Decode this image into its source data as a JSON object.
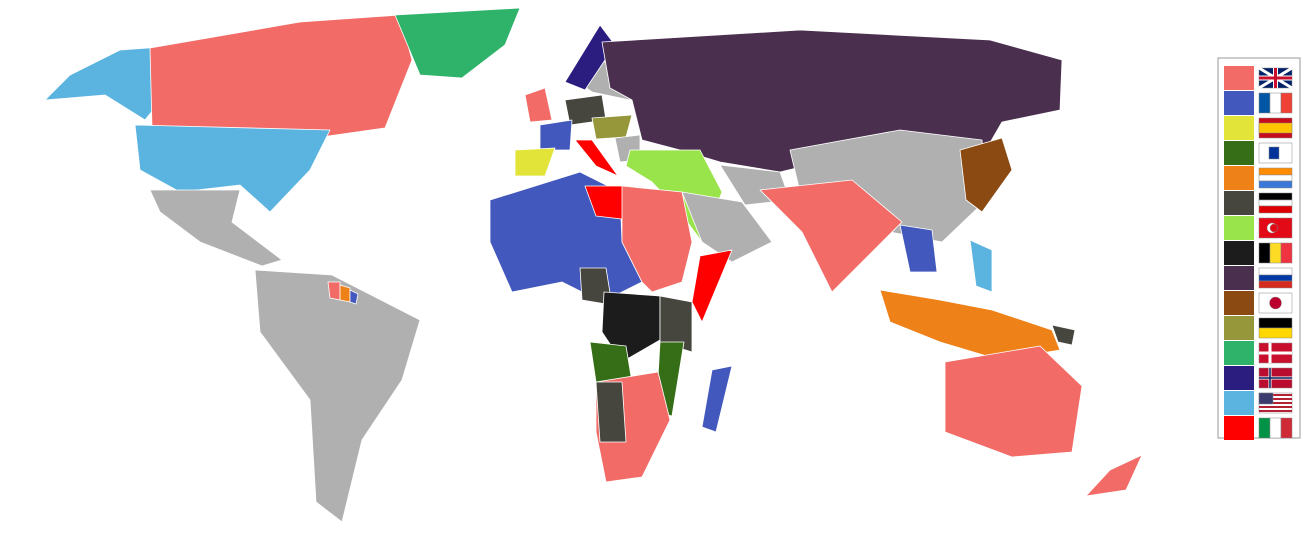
{
  "legend": {
    "colors": [
      "#f26b67",
      "#4258bd",
      "#e2e43a",
      "#366e18",
      "#ef8119",
      "#46463f",
      "#99e34b",
      "#1c1c1c",
      "#4b2f4f",
      "#8b4a12",
      "#96973a",
      "#2fb36b",
      "#2b1c7f",
      "#5bb4e0",
      "#ff0000"
    ]
  }
}
